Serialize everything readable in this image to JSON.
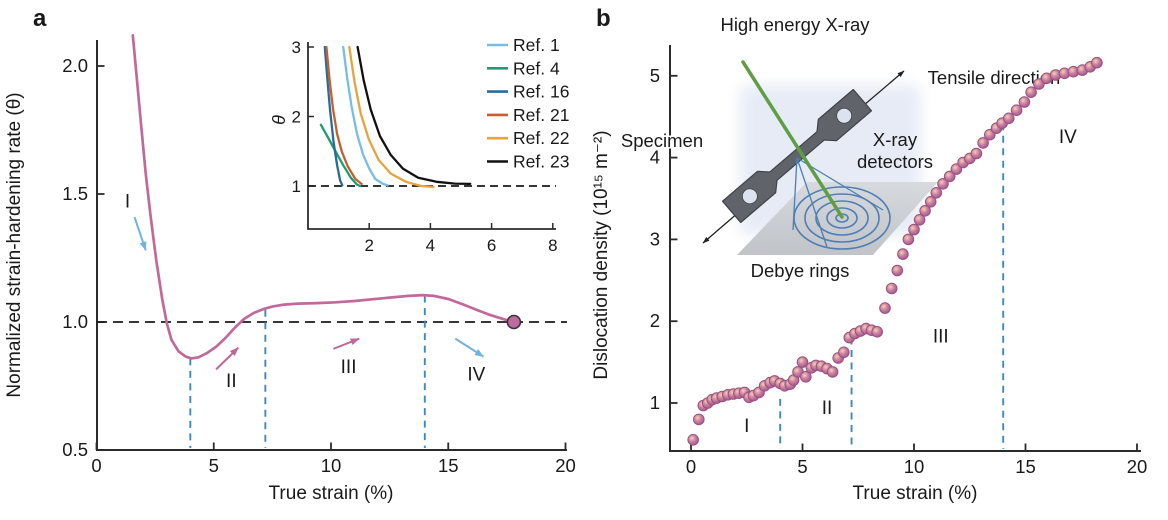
{
  "panel_a": {
    "letter": "a"
  },
  "panel_b": {
    "letter": "b",
    "diagram": {
      "beam_label": "High energy X-ray",
      "tensile_label": "Tensile direction",
      "specimen_label": "Specimen",
      "detector_label_line1": "X-ray",
      "detector_label_line2": "detectors",
      "rings_label": "Debye rings"
    }
  },
  "colors": {
    "curve_pink": "#c2699c",
    "point_fill": "#cb7fa9",
    "point_edge": "#9a527d",
    "point_glint": "#f3d3a4",
    "end_dot_fill": "#bb6b9f",
    "end_dot_edge": "#40303c",
    "dashed_blue": "#3f89c0",
    "dashed_black": "#1a1a1a",
    "axis": "#2b2b2b",
    "arrow_blue": "#6fb3e3",
    "arrow_pink": "#bf679b",
    "beam_green": "#5f9e45",
    "ring_blue": "#4d7fb5",
    "specimen_gray": "#60646a",
    "specimen_edge": "#3f4247",
    "hole_fill": "#dce3ee",
    "plate_light": "#d6d9dc",
    "plate_dark": "#bdc0c4",
    "shadow_blue": "#e2e8f4"
  },
  "chart_data": [
    {
      "id": "panel-a-main",
      "type": "line",
      "xlabel": "True strain (%)",
      "ylabel": "Normalized strain-hardening rate (θ)",
      "xlim": [
        0,
        20
      ],
      "ylim": [
        0.5,
        2.1
      ],
      "x_ticks": [
        0,
        5,
        10,
        15,
        20
      ],
      "y_ticks": [
        0.5,
        1.0,
        1.5,
        2.0
      ],
      "y_tick_labels": [
        "0.5",
        "1.0",
        "1.5",
        "2.0"
      ],
      "reference_line_y": 1.0,
      "stage_boundaries_x": [
        4,
        7.2,
        14
      ],
      "boundary_tops_y": [
        0.858,
        1.048,
        1.103
      ],
      "curve": [
        [
          1.55,
          2.12
        ],
        [
          1.7,
          1.97
        ],
        [
          1.9,
          1.77
        ],
        [
          2.1,
          1.58
        ],
        [
          2.3,
          1.42
        ],
        [
          2.55,
          1.24
        ],
        [
          2.8,
          1.09
        ],
        [
          3.0,
          0.995
        ],
        [
          3.2,
          0.93
        ],
        [
          3.5,
          0.885
        ],
        [
          3.8,
          0.865
        ],
        [
          4.05,
          0.858
        ],
        [
          4.35,
          0.862
        ],
        [
          4.7,
          0.878
        ],
        [
          5.1,
          0.903
        ],
        [
          5.5,
          0.938
        ],
        [
          5.9,
          0.978
        ],
        [
          6.3,
          1.012
        ],
        [
          6.7,
          1.035
        ],
        [
          7.1,
          1.05
        ],
        [
          7.5,
          1.06
        ],
        [
          8.0,
          1.068
        ],
        [
          8.6,
          1.072
        ],
        [
          9.4,
          1.074
        ],
        [
          10.2,
          1.077
        ],
        [
          11.0,
          1.082
        ],
        [
          11.8,
          1.089
        ],
        [
          12.6,
          1.096
        ],
        [
          13.3,
          1.102
        ],
        [
          13.9,
          1.105
        ],
        [
          14.4,
          1.102
        ],
        [
          15.0,
          1.09
        ],
        [
          15.6,
          1.07
        ],
        [
          16.2,
          1.048
        ],
        [
          16.8,
          1.027
        ],
        [
          17.4,
          1.01
        ],
        [
          17.8,
          1.0
        ]
      ],
      "end_point": [
        17.8,
        1.0
      ],
      "regions": [
        {
          "label": "I",
          "x": 1.32,
          "y": 1.47
        },
        {
          "label": "II",
          "x": 5.75,
          "y": 0.77
        },
        {
          "label": "III",
          "x": 10.75,
          "y": 0.825
        },
        {
          "label": "IV",
          "x": 16.2,
          "y": 0.795
        }
      ],
      "arrows": [
        {
          "color": "blue",
          "from": [
            1.62,
            1.41
          ],
          "to": [
            2.1,
            1.28
          ]
        },
        {
          "color": "pink",
          "from": [
            5.1,
            0.815
          ],
          "to": [
            6.05,
            0.9
          ]
        },
        {
          "color": "pink",
          "from": [
            10.1,
            0.895
          ],
          "to": [
            11.2,
            0.935
          ]
        },
        {
          "color": "blue",
          "from": [
            15.3,
            0.935
          ],
          "to": [
            16.5,
            0.865
          ]
        }
      ]
    },
    {
      "id": "panel-a-inset",
      "type": "line",
      "ylabel": "θ",
      "xlim": [
        0,
        8
      ],
      "ylim": [
        0.4,
        3.05
      ],
      "x_ticks": [
        2,
        4,
        6,
        8
      ],
      "y_ticks": [
        1,
        2,
        3
      ],
      "reference_line_y": 1.0,
      "legend_position": "right",
      "series": [
        {
          "name": "Ref. 1",
          "color": "#77bde8",
          "points": [
            [
              1.15,
              3.0
            ],
            [
              1.28,
              2.55
            ],
            [
              1.42,
              2.15
            ],
            [
              1.6,
              1.75
            ],
            [
              1.8,
              1.45
            ],
            [
              2.0,
              1.25
            ],
            [
              2.2,
              1.1
            ],
            [
              2.45,
              1.03
            ],
            [
              2.6,
              1.01
            ]
          ]
        },
        {
          "name": "Ref. 4",
          "color": "#1f9c72",
          "points": [
            [
              0.42,
              1.88
            ],
            [
              0.65,
              1.7
            ],
            [
              0.9,
              1.5
            ],
            [
              1.15,
              1.3
            ],
            [
              1.4,
              1.12
            ],
            [
              1.6,
              1.02
            ],
            [
              1.7,
              1.0
            ]
          ]
        },
        {
          "name": "Ref. 16",
          "color": "#2a6b9c",
          "points": [
            [
              0.55,
              3.0
            ],
            [
              0.63,
              2.55
            ],
            [
              0.72,
              2.1
            ],
            [
              0.83,
              1.65
            ],
            [
              0.95,
              1.3
            ],
            [
              1.05,
              1.08
            ],
            [
              1.12,
              1.01
            ]
          ]
        },
        {
          "name": "Ref. 21",
          "color": "#c75e2e",
          "points": [
            [
              0.6,
              3.0
            ],
            [
              0.7,
              2.55
            ],
            [
              0.82,
              2.1
            ],
            [
              0.95,
              1.75
            ],
            [
              1.1,
              1.5
            ],
            [
              1.3,
              1.28
            ],
            [
              1.55,
              1.1
            ],
            [
              1.75,
              1.03
            ]
          ]
        },
        {
          "name": "Ref. 22",
          "color": "#e6a33e",
          "points": [
            [
              1.35,
              3.0
            ],
            [
              1.52,
              2.5
            ],
            [
              1.72,
              2.05
            ],
            [
              1.98,
              1.68
            ],
            [
              2.3,
              1.38
            ],
            [
              2.7,
              1.18
            ],
            [
              3.2,
              1.06
            ],
            [
              3.7,
              1.0
            ],
            [
              4.1,
              0.985
            ]
          ]
        },
        {
          "name": "Ref. 23",
          "color": "#111111",
          "points": [
            [
              1.62,
              3.0
            ],
            [
              1.82,
              2.52
            ],
            [
              2.05,
              2.1
            ],
            [
              2.35,
              1.72
            ],
            [
              2.7,
              1.45
            ],
            [
              3.1,
              1.25
            ],
            [
              3.6,
              1.12
            ],
            [
              4.2,
              1.06
            ],
            [
              4.8,
              1.035
            ],
            [
              5.3,
              1.03
            ]
          ]
        }
      ]
    },
    {
      "id": "panel-b-scatter",
      "type": "scatter",
      "xlabel": "True strain (%)",
      "ylabel": "Dislocation density (10¹⁵ m⁻²)",
      "xlim": [
        -0.9,
        20.2
      ],
      "ylim": [
        0.4,
        5.4
      ],
      "x_ticks": [
        0,
        5,
        10,
        15,
        20
      ],
      "y_ticks": [
        1,
        2,
        3,
        4,
        5
      ],
      "stage_boundaries_x": [
        4,
        7.2,
        14
      ],
      "boundary_tops_y": [
        1.05,
        1.8,
        4.42
      ],
      "regions": [
        {
          "label": "I",
          "x": 2.5,
          "y": 0.72
        },
        {
          "label": "II",
          "x": 6.1,
          "y": 0.94
        },
        {
          "label": "III",
          "x": 11.2,
          "y": 1.81
        },
        {
          "label": "IV",
          "x": 16.9,
          "y": 4.25
        }
      ],
      "points": [
        [
          0.1,
          0.55
        ],
        [
          0.35,
          0.8
        ],
        [
          0.55,
          0.97
        ],
        [
          0.75,
          1.0
        ],
        [
          0.95,
          1.04
        ],
        [
          1.15,
          1.06
        ],
        [
          1.4,
          1.08
        ],
        [
          1.65,
          1.1
        ],
        [
          1.9,
          1.11
        ],
        [
          2.15,
          1.12
        ],
        [
          2.4,
          1.13
        ],
        [
          2.6,
          1.07
        ],
        [
          2.8,
          1.09
        ],
        [
          3.05,
          1.13
        ],
        [
          3.3,
          1.21
        ],
        [
          3.55,
          1.25
        ],
        [
          3.75,
          1.27
        ],
        [
          4.0,
          1.24
        ],
        [
          4.2,
          1.21
        ],
        [
          4.45,
          1.23
        ],
        [
          4.6,
          1.28
        ],
        [
          4.8,
          1.38
        ],
        [
          5.0,
          1.5
        ],
        [
          5.15,
          1.32
        ],
        [
          5.4,
          1.43
        ],
        [
          5.6,
          1.46
        ],
        [
          5.85,
          1.45
        ],
        [
          6.1,
          1.42
        ],
        [
          6.35,
          1.38
        ],
        [
          6.6,
          1.55
        ],
        [
          6.85,
          1.62
        ],
        [
          7.1,
          1.8
        ],
        [
          7.35,
          1.85
        ],
        [
          7.6,
          1.88
        ],
        [
          7.85,
          1.91
        ],
        [
          8.1,
          1.89
        ],
        [
          8.35,
          1.87
        ],
        [
          8.7,
          2.16
        ],
        [
          9.0,
          2.4
        ],
        [
          9.25,
          2.62
        ],
        [
          9.5,
          2.82
        ],
        [
          9.75,
          3.0
        ],
        [
          10.0,
          3.12
        ],
        [
          10.25,
          3.24
        ],
        [
          10.5,
          3.35
        ],
        [
          10.75,
          3.46
        ],
        [
          11.0,
          3.57
        ],
        [
          11.3,
          3.68
        ],
        [
          11.6,
          3.77
        ],
        [
          11.9,
          3.86
        ],
        [
          12.2,
          3.94
        ],
        [
          12.5,
          3.99
        ],
        [
          12.8,
          4.05
        ],
        [
          13.1,
          4.18
        ],
        [
          13.4,
          4.28
        ],
        [
          13.7,
          4.36
        ],
        [
          13.95,
          4.42
        ],
        [
          14.25,
          4.48
        ],
        [
          14.6,
          4.58
        ],
        [
          14.95,
          4.68
        ],
        [
          15.25,
          4.8
        ],
        [
          15.6,
          4.9
        ],
        [
          15.95,
          4.97
        ],
        [
          16.35,
          5.01
        ],
        [
          16.75,
          5.03
        ],
        [
          17.15,
          5.05
        ],
        [
          17.55,
          5.07
        ],
        [
          17.9,
          5.11
        ],
        [
          18.2,
          5.16
        ]
      ]
    }
  ]
}
